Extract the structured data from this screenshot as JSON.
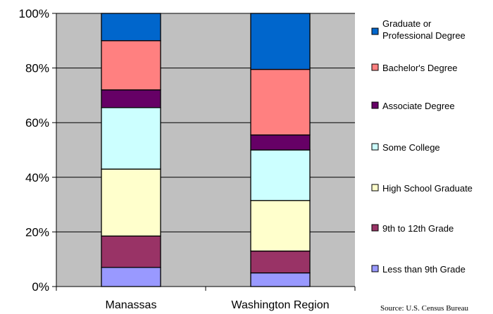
{
  "chart_data": {
    "type": "bar",
    "stacked": true,
    "percent": true,
    "categories": [
      "Manassas",
      "Washington Region"
    ],
    "series": [
      {
        "name": "Less than 9th Grade",
        "color": "#9999ff",
        "values": [
          7,
          5
        ]
      },
      {
        "name": "9th to 12th Grade",
        "color": "#993366",
        "values": [
          11.5,
          8
        ]
      },
      {
        "name": "High School Graduate",
        "color": "#ffffcc",
        "values": [
          24.5,
          18.5
        ]
      },
      {
        "name": "Some College",
        "color": "#ccffff",
        "values": [
          22.5,
          18.5
        ]
      },
      {
        "name": "Associate Degree",
        "color": "#660066",
        "values": [
          6.5,
          5.5
        ]
      },
      {
        "name": "Bachelor's Degree",
        "color": "#ff8080",
        "values": [
          18,
          24
        ]
      },
      {
        "name": "Graduate or Professional Degree",
        "color": "#0066cc",
        "values": [
          10,
          20.5
        ]
      }
    ],
    "ylim": [
      0,
      100
    ],
    "yticks": [
      "0%",
      "20%",
      "40%",
      "60%",
      "80%",
      "100%"
    ],
    "plot_background": "#c0c0c0",
    "legend_position": "right",
    "source_note": "Source: U.S. Census Bureau"
  }
}
